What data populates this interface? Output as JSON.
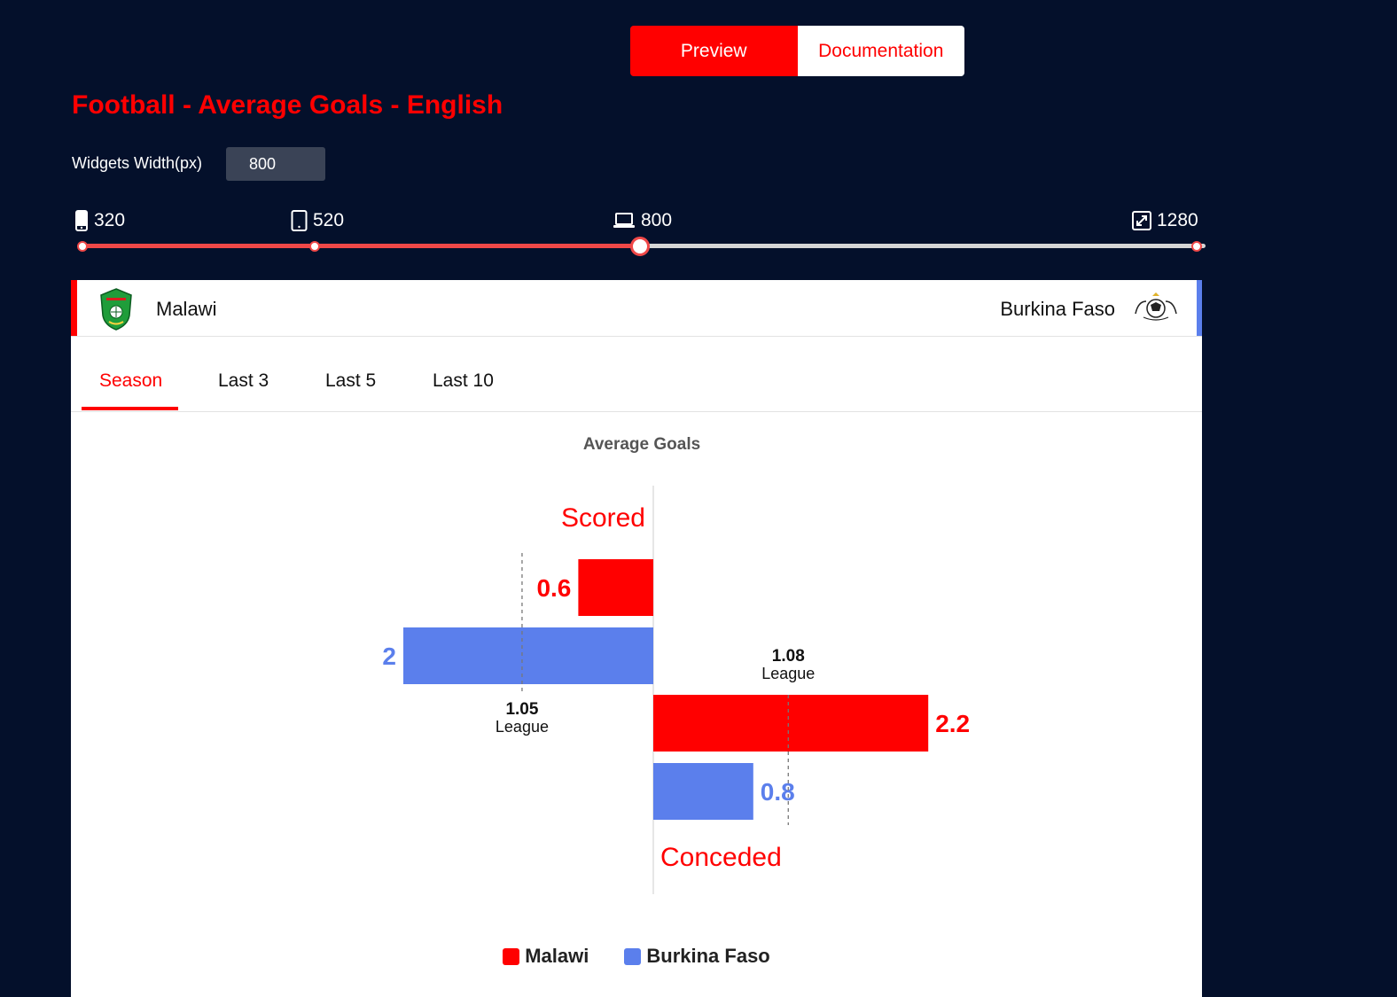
{
  "nav": {
    "preview_label": "Preview",
    "documentation_label": "Documentation"
  },
  "page_title": "Football - Average Goals - English",
  "width_control": {
    "label": "Widgets Width(px)",
    "value": "800"
  },
  "breakpoints": [
    {
      "icon": "phone-icon",
      "value": "320"
    },
    {
      "icon": "tablet-icon",
      "value": "520"
    },
    {
      "icon": "laptop-icon",
      "value": "800"
    },
    {
      "icon": "fullscreen-icon",
      "value": "1280"
    }
  ],
  "slider": {
    "min": 320,
    "max": 1280,
    "value": 800
  },
  "teams": {
    "home": {
      "name": "Malawi",
      "color": "#ff0000",
      "logo": "malawi-crest-icon"
    },
    "away": {
      "name": "Burkina Faso",
      "color": "#5b7fec",
      "logo": "burkina-faso-crest-icon"
    }
  },
  "tabs": [
    "Season",
    "Last 3",
    "Last 5",
    "Last 10"
  ],
  "active_tab": "Season",
  "chart_data": {
    "type": "bar",
    "orientation": "horizontal-diverging",
    "title": "Average Goals",
    "groups": [
      {
        "label": "Scored",
        "direction": "left",
        "league_avg": 1.05,
        "league_label": "League"
      },
      {
        "label": "Conceded",
        "direction": "right",
        "league_avg": 1.08,
        "league_label": "League"
      }
    ],
    "series": [
      {
        "name": "Malawi",
        "color": "#ff0000",
        "values": [
          0.6,
          2.2
        ],
        "labels": [
          "0.6",
          "2.2"
        ]
      },
      {
        "name": "Burkina Faso",
        "color": "#5b7fec",
        "values": [
          2,
          0.8
        ],
        "labels": [
          "2",
          "0.8"
        ]
      }
    ],
    "league_labels": [
      "1.05",
      "1.08"
    ],
    "legend_position": "bottom-center",
    "grid": false
  }
}
